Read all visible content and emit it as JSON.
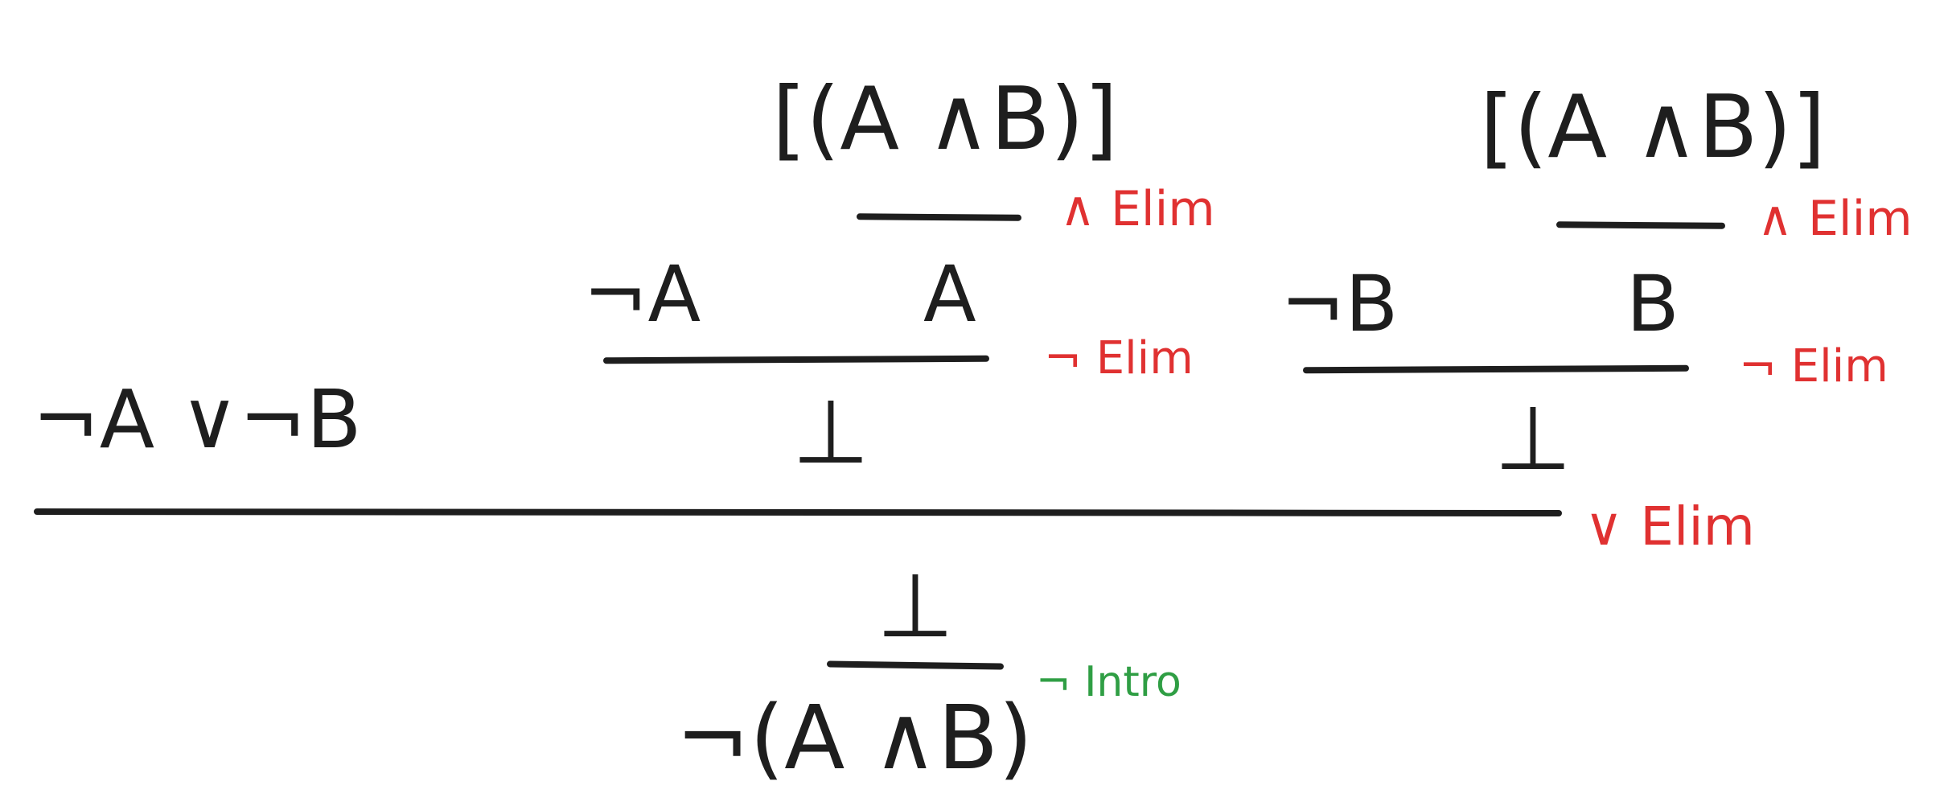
{
  "proof": {
    "premise_left": "[(A ∧B)]",
    "premise_right": "[(A ∧B)]",
    "rule_and_elim_left": "∧ Elim",
    "rule_and_elim_right": "∧ Elim",
    "not_a": "¬A",
    "a": "A",
    "not_b": "¬B",
    "b": "B",
    "rule_not_elim_left": "¬ Elim",
    "rule_not_elim_right": "¬ Elim",
    "disjunction": "¬A ∨¬B",
    "bottom_left": "⊥",
    "bottom_right": "⊥",
    "rule_or_elim": "∨ Elim",
    "bottom_result": "⊥",
    "rule_not_intro": "¬ Intro",
    "conclusion": "¬(A ∧B)"
  },
  "colors": {
    "formula": "#1e1e1e",
    "rule_elim": "#e03131",
    "rule_intro": "#2f9e44"
  }
}
